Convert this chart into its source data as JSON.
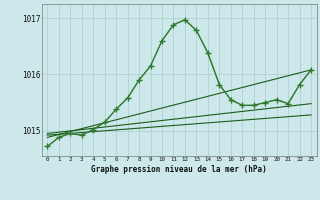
{
  "background_color": "#cce8ea",
  "grid_color": "#aacccc",
  "line_color_dark": "#1a5c1a",
  "line_color_medium": "#2d7a2d",
  "ylabel_ticks": [
    1015,
    1016,
    1017
  ],
  "xlabel_ticks": [
    0,
    1,
    2,
    3,
    4,
    5,
    6,
    7,
    8,
    9,
    10,
    11,
    12,
    13,
    14,
    15,
    16,
    17,
    18,
    19,
    20,
    21,
    22,
    23
  ],
  "xlabel_label": "Graphe pression niveau de la mer (hPa)",
  "xlim": [
    -0.5,
    23.5
  ],
  "ylim": [
    1014.55,
    1017.25
  ],
  "series_main": {
    "x": [
      0,
      1,
      2,
      3,
      4,
      5,
      6,
      7,
      8,
      9,
      10,
      11,
      12,
      13,
      14,
      15,
      16,
      17,
      18,
      19,
      20,
      21,
      22,
      23
    ],
    "y": [
      1014.72,
      1014.88,
      1014.95,
      1014.92,
      1015.02,
      1015.15,
      1015.38,
      1015.58,
      1015.9,
      1016.15,
      1016.6,
      1016.88,
      1016.97,
      1016.78,
      1016.38,
      1015.82,
      1015.55,
      1015.45,
      1015.45,
      1015.5,
      1015.55,
      1015.48,
      1015.82,
      1016.08
    ]
  },
  "series_dotted": {
    "x": [
      0,
      1,
      2,
      3,
      4,
      5,
      6,
      7,
      8,
      9,
      10,
      11,
      12,
      13,
      14,
      15,
      16,
      17,
      18,
      19,
      20,
      21,
      22,
      23
    ],
    "y": [
      1014.72,
      1014.88,
      1014.95,
      1014.92,
      1015.02,
      1015.15,
      1015.38,
      1015.58,
      1015.9,
      1016.15,
      1016.6,
      1016.88,
      1016.97,
      1016.78,
      1016.38,
      1015.82,
      1015.55,
      1015.45,
      1015.45,
      1015.5,
      1015.55,
      1015.48,
      1015.82,
      1016.08
    ]
  },
  "linear1": {
    "x": [
      0,
      23
    ],
    "y": [
      1014.92,
      1015.28
    ]
  },
  "linear2": {
    "x": [
      0,
      23
    ],
    "y": [
      1014.95,
      1015.48
    ]
  },
  "linear3": {
    "x": [
      0,
      23
    ],
    "y": [
      1014.88,
      1016.08
    ]
  }
}
